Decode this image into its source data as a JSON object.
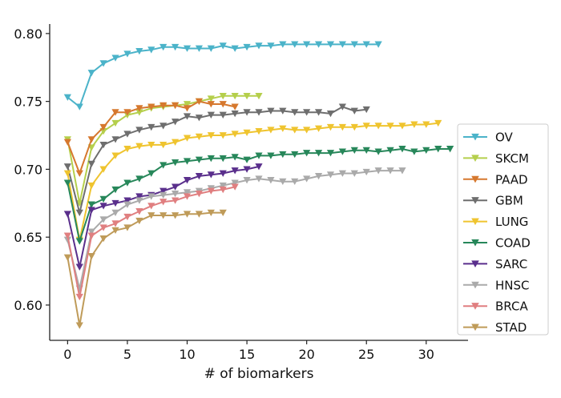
{
  "chart_data": {
    "type": "line",
    "title": "",
    "xlabel": "# of biomarkers",
    "ylabel": "",
    "xlim": [
      -1.5,
      33.5
    ],
    "ylim": [
      0.574,
      0.807
    ],
    "xticks": [
      0,
      5,
      10,
      15,
      20,
      25,
      30
    ],
    "yticks": [
      0.6,
      0.65,
      0.7,
      0.75,
      0.8
    ],
    "ytick_labels": [
      "0.60",
      "0.65",
      "0.70",
      "0.75",
      "0.80"
    ],
    "grid": false,
    "legend_position": "right",
    "marker": "triangle-down",
    "series": [
      {
        "name": "OV",
        "color": "#4bb3c9",
        "values": [
          0.753,
          0.746,
          0.771,
          0.778,
          0.782,
          0.785,
          0.787,
          0.788,
          0.79,
          0.79,
          0.789,
          0.789,
          0.789,
          0.791,
          0.789,
          0.79,
          0.791,
          0.791,
          0.792,
          0.792,
          0.792,
          0.792,
          0.792,
          0.792,
          0.792,
          0.792,
          0.792
        ]
      },
      {
        "name": "SKCM",
        "color": "#b5cf4c",
        "values": [
          0.722,
          0.675,
          0.716,
          0.728,
          0.734,
          0.74,
          0.742,
          0.745,
          0.746,
          0.747,
          0.748,
          0.75,
          0.752,
          0.754,
          0.754,
          0.754,
          0.754
        ]
      },
      {
        "name": "PAAD",
        "color": "#d6782e",
        "values": [
          0.72,
          0.697,
          0.722,
          0.731,
          0.742,
          0.742,
          0.745,
          0.746,
          0.747,
          0.747,
          0.745,
          0.75,
          0.748,
          0.748,
          0.746
        ]
      },
      {
        "name": "GBM",
        "color": "#6e6e6e",
        "values": [
          0.702,
          0.668,
          0.704,
          0.718,
          0.722,
          0.726,
          0.729,
          0.731,
          0.732,
          0.735,
          0.739,
          0.738,
          0.74,
          0.74,
          0.741,
          0.742,
          0.742,
          0.743,
          0.743,
          0.742,
          0.742,
          0.742,
          0.741,
          0.746,
          0.743,
          0.744
        ]
      },
      {
        "name": "LUNG",
        "color": "#efc42f",
        "values": [
          0.697,
          0.648,
          0.688,
          0.7,
          0.71,
          0.715,
          0.717,
          0.718,
          0.718,
          0.72,
          0.723,
          0.724,
          0.725,
          0.725,
          0.726,
          0.727,
          0.728,
          0.729,
          0.73,
          0.729,
          0.729,
          0.73,
          0.731,
          0.731,
          0.731,
          0.732,
          0.732,
          0.732,
          0.732,
          0.733,
          0.733,
          0.734
        ]
      },
      {
        "name": "COAD",
        "color": "#27875a",
        "values": [
          0.69,
          0.647,
          0.674,
          0.678,
          0.685,
          0.69,
          0.693,
          0.697,
          0.703,
          0.705,
          0.706,
          0.707,
          0.708,
          0.708,
          0.709,
          0.707,
          0.71,
          0.71,
          0.711,
          0.711,
          0.712,
          0.712,
          0.712,
          0.713,
          0.714,
          0.714,
          0.713,
          0.714,
          0.715,
          0.713,
          0.714,
          0.715,
          0.715
        ]
      },
      {
        "name": "SARC",
        "color": "#5a2f8c",
        "values": [
          0.667,
          0.628,
          0.67,
          0.673,
          0.675,
          0.677,
          0.68,
          0.681,
          0.684,
          0.687,
          0.692,
          0.695,
          0.696,
          0.697,
          0.699,
          0.7,
          0.702
        ]
      },
      {
        "name": "HNSC",
        "color": "#aaaaaa",
        "values": [
          0.648,
          0.612,
          0.654,
          0.663,
          0.668,
          0.674,
          0.677,
          0.68,
          0.681,
          0.682,
          0.683,
          0.684,
          0.686,
          0.688,
          0.69,
          0.692,
          0.693,
          0.692,
          0.691,
          0.691,
          0.693,
          0.695,
          0.696,
          0.697,
          0.697,
          0.698,
          0.699,
          0.699,
          0.699
        ]
      },
      {
        "name": "BRCA",
        "color": "#e07f80",
        "values": [
          0.651,
          0.606,
          0.651,
          0.657,
          0.66,
          0.665,
          0.669,
          0.673,
          0.676,
          0.677,
          0.68,
          0.682,
          0.684,
          0.685,
          0.687
        ]
      },
      {
        "name": "STAD",
        "color": "#bf9b59",
        "values": [
          0.635,
          0.585,
          0.636,
          0.649,
          0.655,
          0.657,
          0.662,
          0.666,
          0.666,
          0.666,
          0.667,
          0.667,
          0.668,
          0.668
        ]
      }
    ]
  }
}
